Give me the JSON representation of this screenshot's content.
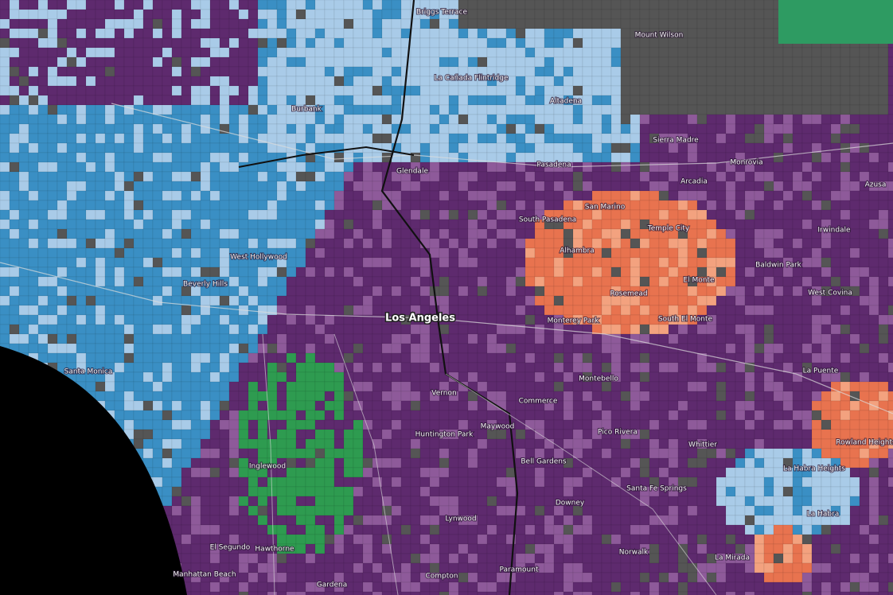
{
  "map": {
    "city": "Los Angeles",
    "places": [
      "Burbank",
      "Glendale",
      "Pasadena",
      "La Cañada Flintridge",
      "Altadena",
      "Sierra Madre",
      "Monrovia",
      "Arcadia",
      "San Marino",
      "South Pasadena",
      "Temple City",
      "Alhambra",
      "Rosemead",
      "El Monte",
      "South El Monte",
      "Monterey Park",
      "West Hollywood",
      "Beverly Hills",
      "Santa Monica",
      "West Covina",
      "Baldwin Park",
      "La Puente",
      "Montebello",
      "Pico Rivera",
      "Whittier",
      "Maywood",
      "Huntington Park",
      "Bell Gardens",
      "Downey",
      "Santa Fe Springs",
      "Inglewood",
      "Lynwood",
      "Compton",
      "Paramount",
      "Norwalk",
      "La Mirada",
      "La Habra",
      "La Habra Heights",
      "Rowland Heights",
      "Hawthorne",
      "El Segundo",
      "Manhattan Beach",
      "Gardena",
      "Commerce",
      "Vernon",
      "Mount Wilson",
      "Briggs Terrace",
      "Azusa",
      "Irwindale"
    ]
  }
}
